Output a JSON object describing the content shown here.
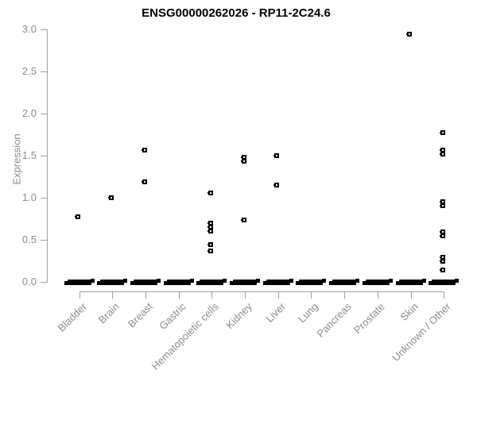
{
  "title": "ENSG00000262026 - RP11-2C24.6",
  "colors": {
    "axis": "#a0a0a0",
    "tick_label": "#8c8c8c",
    "title": "#000000",
    "point": "#000000",
    "background": "#ffffff"
  },
  "chart_data": {
    "type": "scatter",
    "subtype": "strip-plot-by-category",
    "title": "ENSG00000262026 - RP11-2C24.6",
    "xlabel": "",
    "ylabel": "Expression",
    "ylim": [
      0.0,
      3.0
    ],
    "yticks": [
      3.0,
      2.5,
      2.0,
      1.5,
      1.0,
      0.5,
      0.0
    ],
    "ytick_labels": [
      "3.0",
      "2.5",
      "2.0",
      "1.5",
      "1.0",
      "0.5",
      "0.0"
    ],
    "grid": false,
    "legend": "none",
    "marker": "small-black-open-square",
    "x_labels_rotation_deg": 45,
    "categories": [
      "Bladder",
      "Brain",
      "Breast",
      "Gastric",
      "Hematopoietic cells",
      "Kidney",
      "Liver",
      "Lung",
      "Pancreas",
      "Prostate",
      "Skin",
      "Unknown / Other"
    ],
    "series": [
      {
        "category": "Bladder",
        "values": [
          0.77
        ],
        "zero_band": true
      },
      {
        "category": "Brain",
        "values": [
          1.0
        ],
        "zero_band": true
      },
      {
        "category": "Breast",
        "values": [
          1.57,
          1.19
        ],
        "zero_band": true
      },
      {
        "category": "Gastric",
        "values": [],
        "zero_band": true
      },
      {
        "category": "Hematopoietic cells",
        "values": [
          1.06,
          0.7,
          0.65,
          0.6,
          0.44,
          0.37
        ],
        "zero_band": true
      },
      {
        "category": "Kidney",
        "values": [
          1.48,
          1.43,
          0.74
        ],
        "zero_band": true
      },
      {
        "category": "Liver",
        "values": [
          1.5,
          1.15
        ],
        "zero_band": true
      },
      {
        "category": "Lung",
        "values": [],
        "zero_band": true
      },
      {
        "category": "Pancreas",
        "values": [],
        "zero_band": true
      },
      {
        "category": "Prostate",
        "values": [],
        "zero_band": true
      },
      {
        "category": "Skin",
        "values": [
          2.94
        ],
        "zero_band": true
      },
      {
        "category": "Unknown / Other",
        "values": [
          1.77,
          1.57,
          1.52,
          0.95,
          0.91,
          0.59,
          0.55,
          0.29,
          0.25,
          0.14
        ],
        "zero_band": true
      }
    ],
    "zero_band_note": "dense cluster of overlapping points at expression 0 in every category"
  }
}
